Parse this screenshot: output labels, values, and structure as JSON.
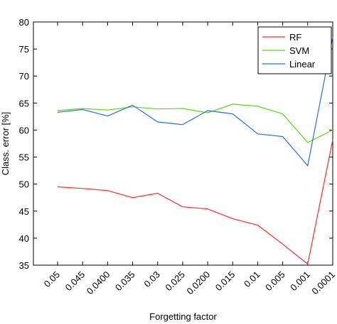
{
  "chart_data": {
    "type": "line",
    "title": "",
    "xlabel": "Forgetting factor",
    "ylabel": "Class. error [%]",
    "categories": [
      "0.05",
      "0.045",
      "0.0400",
      "0.035",
      "0.03",
      "0.025",
      "0.0200",
      "0.015",
      "0.01",
      "0.005",
      "0.001",
      "0.0001"
    ],
    "ylim": [
      35,
      80
    ],
    "yticks": [
      35,
      40,
      45,
      50,
      55,
      60,
      65,
      70,
      75,
      80
    ],
    "grid": false,
    "legend_position": "top-right",
    "series": [
      {
        "name": "RF",
        "color": "#ff2a2a",
        "values": [
          49.5,
          49.2,
          48.8,
          47.5,
          48.3,
          45.8,
          45.4,
          43.6,
          42.4,
          38.9,
          35.2,
          58.2
        ]
      },
      {
        "name": "SVM",
        "color": "#5cd60e",
        "values": [
          63.6,
          64.0,
          63.7,
          64.3,
          63.9,
          64.0,
          63.2,
          64.8,
          64.4,
          63.0,
          57.7,
          60.0
        ]
      },
      {
        "name": "Linear",
        "color": "#2d6fe0",
        "values": [
          63.3,
          63.8,
          62.6,
          64.6,
          61.5,
          61.0,
          63.6,
          63.0,
          59.3,
          58.8,
          53.4,
          77.2
        ]
      }
    ]
  }
}
